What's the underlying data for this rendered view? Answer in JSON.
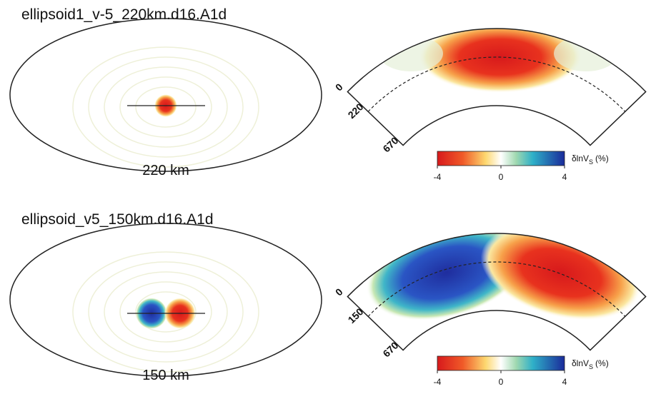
{
  "panels": [
    {
      "title": "ellipsoid1_v-5_220km.d16.A1d",
      "map_label": "220 km",
      "section_depths": [
        "0",
        "220",
        "670"
      ],
      "colorbar": {
        "label": "δlnV",
        "label_sub": "S",
        "label_unit": "(%)",
        "ticks": [
          "-4",
          "0",
          "4"
        ]
      }
    },
    {
      "title": "ellipsoid_v5_150km.d16.A1d",
      "map_label": "150 km",
      "section_depths": [
        "0",
        "150",
        "670"
      ],
      "colorbar": {
        "label": "δlnV",
        "label_sub": "S",
        "label_unit": "(%)",
        "ticks": [
          "-4",
          "0",
          "4"
        ]
      }
    }
  ]
}
